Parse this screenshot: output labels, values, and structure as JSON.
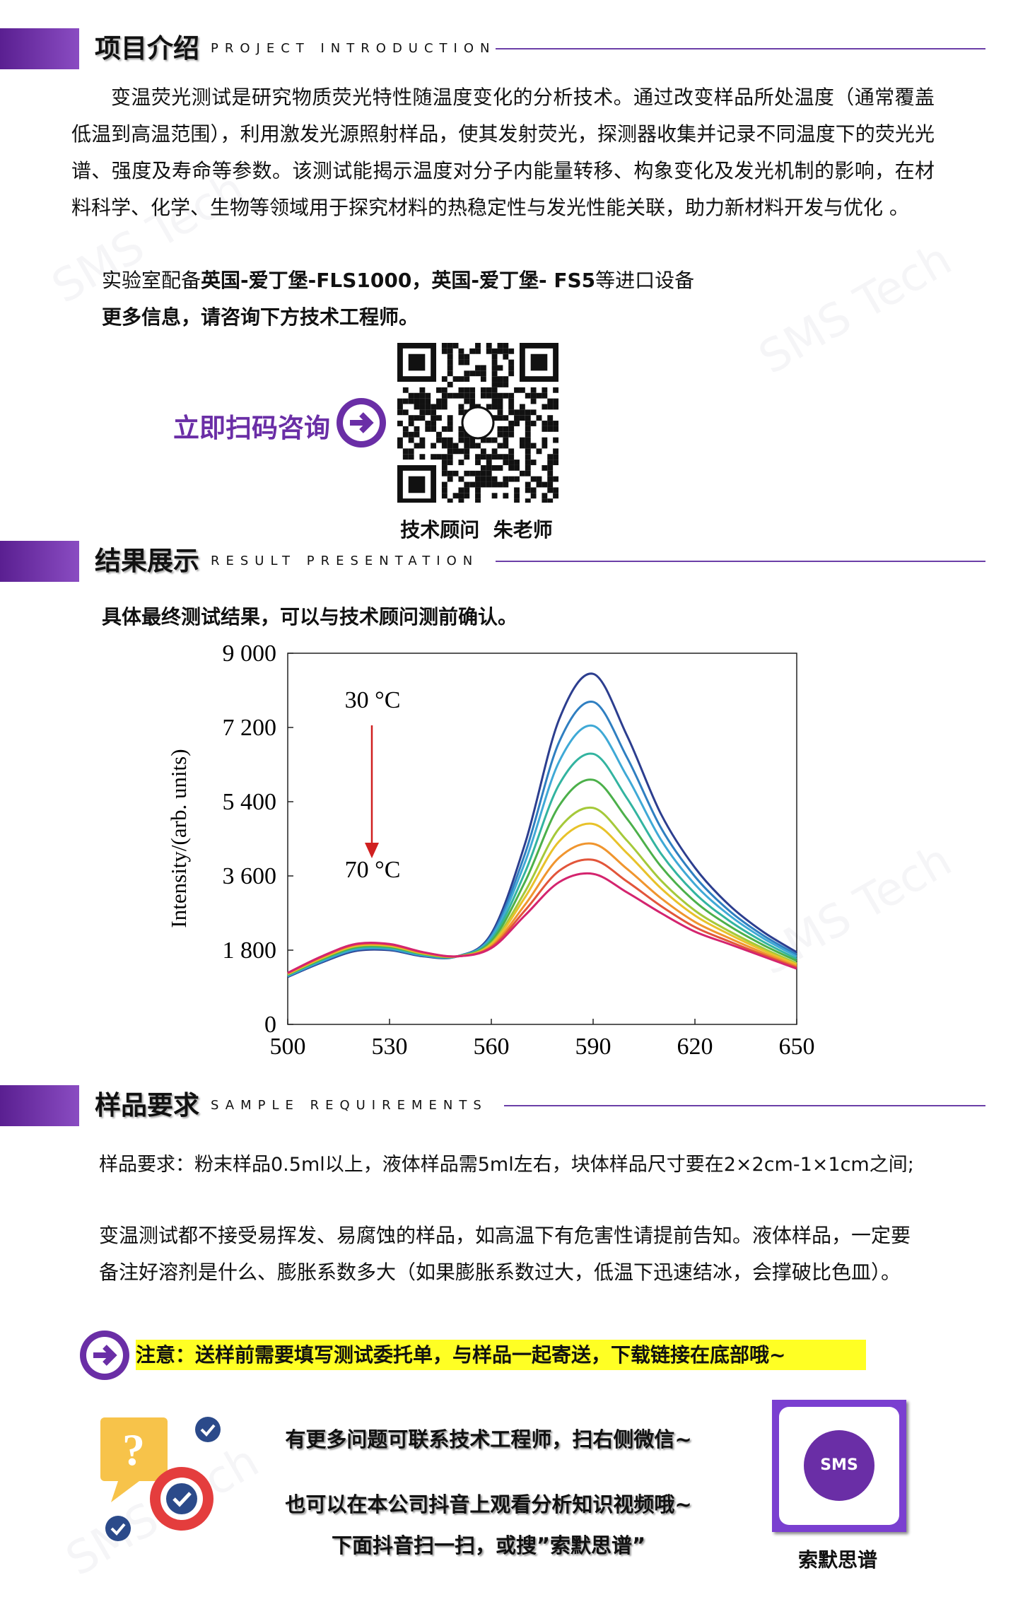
{
  "watermark": "SMS Tech",
  "sections": [
    {
      "title": "项目介绍",
      "subtitle": "PROJECT INTRODUCTION"
    },
    {
      "title": "结果展示",
      "subtitle": "RESULT PRESENTATION"
    },
    {
      "title": "样品要求",
      "subtitle": "SAMPLE REQUIREMENTS"
    }
  ],
  "intro": {
    "paragraph": "变温荧光测试是研究物质荧光特性随温度变化的分析技术。通过改变样品所处温度（通常覆盖低温到高温范围），利用激发光源照射样品，使其发射荧光，探测器收集并记录不同温度下的荧光光谱、强度及寿命等参数。该测试能揭示温度对分子内能量转移、构象变化及发光机制的影响，在材料科学、化学、生物等领域用于探究材料的热稳定性与发光性能关联，助力新材料开发与优化 。",
    "equipment": [
      "实验室配备",
      "英国-爱丁堡-FLS1000，英国-爱丁堡- FS5",
      "等进口设备"
    ],
    "more_info": "更多信息，请咨询下方技术工程师。",
    "scan_prompt": "立即扫码咨询",
    "consultant": "技术顾问  朱老师"
  },
  "results": {
    "note": "具体最终测试结果，可以与技术顾问测前确认。"
  },
  "chart_data": {
    "type": "line",
    "y_label": "Intensity/(arb. units)",
    "annotations": [
      "30 °C",
      "70 °C"
    ],
    "x": [
      500,
      510,
      520,
      530,
      540,
      550,
      560,
      570,
      580,
      590,
      600,
      610,
      620,
      630,
      640,
      650
    ],
    "xlim": [
      500,
      650
    ],
    "xticks": [
      500,
      530,
      560,
      590,
      620,
      650
    ],
    "ylim": [
      0,
      9000
    ],
    "yticks": [
      0,
      {
        "value": 1800,
        "label": "1 800"
      },
      {
        "value": 3600,
        "label": "3 600"
      },
      {
        "value": 5400,
        "label": "5 400"
      },
      {
        "value": 7200,
        "label": "7 200"
      },
      {
        "value": 9000,
        "label": "9 000"
      }
    ],
    "series": [
      {
        "color": "#2c3e8f",
        "values": [
          1150,
          1500,
          1780,
          1800,
          1650,
          1650,
          2200,
          4400,
          7400,
          8500,
          7000,
          5100,
          3800,
          2900,
          2250,
          1750
        ]
      },
      {
        "color": "#2f7fc1",
        "values": [
          1165,
          1520,
          1805,
          1820,
          1665,
          1650,
          2150,
          4155,
          6850,
          7820,
          6470,
          4765,
          3585,
          2765,
          2165,
          1695
        ]
      },
      {
        "color": "#3fa9d6",
        "values": [
          1175,
          1540,
          1825,
          1840,
          1675,
          1650,
          2110,
          3945,
          6375,
          7240,
          6010,
          4475,
          3395,
          2655,
          2095,
          1645
        ]
      },
      {
        "color": "#33b4a0",
        "values": [
          1190,
          1560,
          1850,
          1860,
          1690,
          1650,
          2060,
          3700,
          5820,
          6560,
          5480,
          4140,
          3180,
          2520,
          2010,
          1590
        ]
      },
      {
        "color": "#4cb04a",
        "values": [
          1205,
          1580,
          1870,
          1880,
          1705,
          1650,
          2015,
          3470,
          5305,
          5930,
          4985,
          3830,
          2980,
          2395,
          1930,
          1540
        ]
      },
      {
        "color": "#a5c93a",
        "values": [
          1215,
          1600,
          1895,
          1900,
          1715,
          1650,
          1965,
          3230,
          4755,
          5250,
          4455,
          3490,
          2760,
          2265,
          1850,
          1480
        ]
      },
      {
        "color": "#e8c22a",
        "values": [
          1225,
          1610,
          1905,
          1910,
          1725,
          1650,
          1940,
          3090,
          4440,
          4860,
          4150,
          3300,
          2640,
          2190,
          1800,
          1450
        ]
      },
      {
        "color": "#f0952e",
        "values": [
          1235,
          1630,
          1925,
          1930,
          1735,
          1650,
          1900,
          2910,
          4045,
          4380,
          3770,
          3060,
          2485,
          2095,
          1740,
          1410
        ]
      },
      {
        "color": "#e2553a",
        "values": [
          1245,
          1640,
          1940,
          1940,
          1745,
          1650,
          1875,
          2770,
          3725,
          3990,
          3465,
          2870,
          2360,
          2015,
          1690,
          1380
        ]
      },
      {
        "color": "#d4246e",
        "values": [
          1250,
          1650,
          1950,
          1950,
          1750,
          1650,
          1850,
          2650,
          3450,
          3650,
          3200,
          2700,
          2250,
          1950,
          1650,
          1350
        ]
      }
    ]
  },
  "requirements": {
    "line1": "样品要求：粉末样品0.5ml以上，液体样品需5ml左右，块体样品尺寸要在2×2cm-1×1cm之间;",
    "paragraph": "变温测试都不接受易挥发、易腐蚀的样品，如高温下有危害性请提前告知。液体样品，一定要备注好溶剂是什么、膨胀系数多大（如果膨胀系数过大，低温下迅速结冰，会撑破比色皿）。",
    "notice": "注意：送样前需要填写测试委托单，与样品一起寄送，下载链接在底部哦~"
  },
  "footer": {
    "lines": [
      "有更多问题可联系技术工程师，扫右侧微信~",
      "也可以在本公司抖音上观看分析知识视频哦~",
      "下面抖音扫一扫，或搜”索默思谱”"
    ],
    "logo_text": "SMS",
    "brand": "索默思谱"
  }
}
